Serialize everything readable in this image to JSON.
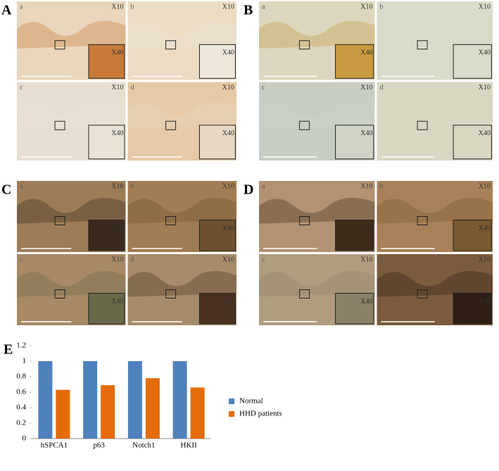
{
  "panels": [
    {
      "label": "A",
      "subpanels": [
        {
          "label": "a",
          "mags": [
            "X10",
            "X40"
          ]
        },
        {
          "label": "b",
          "mags": [
            "X10",
            "X40"
          ]
        },
        {
          "label": "c",
          "mags": [
            "X10",
            "X40"
          ]
        },
        {
          "label": "d",
          "mags": [
            "X10",
            "X40"
          ]
        }
      ]
    },
    {
      "label": "B",
      "subpanels": [
        {
          "label": "a",
          "mags": [
            "X10",
            "X40"
          ]
        },
        {
          "label": "b",
          "mags": [
            "X10",
            "X40"
          ]
        },
        {
          "label": "c",
          "mags": [
            "X10",
            "X40"
          ]
        },
        {
          "label": "d",
          "mags": [
            "X10",
            "X40"
          ]
        }
      ]
    },
    {
      "label": "C",
      "subpanels": [
        {
          "label": "a",
          "mags": [
            "X10",
            "X10"
          ]
        },
        {
          "label": "b",
          "mags": [
            "X10",
            "X40"
          ]
        },
        {
          "label": "c",
          "mags": [
            "X10",
            "X40"
          ]
        },
        {
          "label": "d",
          "mags": [
            "X10",
            "X40"
          ]
        }
      ]
    },
    {
      "label": "D",
      "subpanels": [
        {
          "label": "a",
          "mags": [
            "X10",
            "X10"
          ]
        },
        {
          "label": "b",
          "mags": [
            "X10",
            "X40"
          ]
        },
        {
          "label": "c",
          "mags": [
            "X10",
            "X40"
          ]
        },
        {
          "label": "d",
          "mags": [
            "X10",
            "X40"
          ]
        }
      ]
    }
  ],
  "chart_data": {
    "type": "bar",
    "panel_label": "E",
    "categories": [
      "hSPCA1",
      "p63",
      "Notch1",
      "HKII"
    ],
    "series": [
      {
        "name": "Normal",
        "color": "#4f81bd",
        "values": [
          1,
          1,
          1,
          1
        ]
      },
      {
        "name": "HHD patients",
        "color": "#e46c0a",
        "values": [
          0.63,
          0.69,
          0.78,
          0.66
        ]
      }
    ],
    "ylim": [
      0,
      1.2
    ],
    "yticks": [
      0,
      0.2,
      0.4,
      0.6,
      0.8,
      1,
      1.2
    ],
    "grid": false,
    "legend": "right"
  }
}
